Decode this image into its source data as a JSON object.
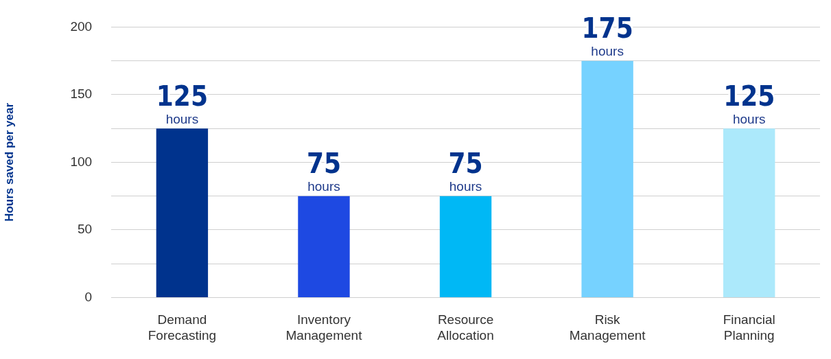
{
  "chart_data": {
    "type": "bar",
    "ylabel": "Hours saved per year",
    "categories": [
      "Demand Forecasting",
      "Inventory Management",
      "Resource Allocation",
      "Risk Management",
      "Financial Planning"
    ],
    "values": [
      125,
      75,
      75,
      175,
      125
    ],
    "colors": [
      "#00338d",
      "#1e49e2",
      "#00b8f5",
      "#76d2ff",
      "#ace9fb"
    ],
    "value_labels": [
      "125\nhours",
      "75\nhours",
      "75\nhours",
      "175\nhours",
      "125\nhours"
    ],
    "ylim": [
      0,
      200
    ],
    "yticks": [
      0,
      {
        "value": 25,
        "label": null
      },
      50,
      {
        "value": 75,
        "label": null
      },
      100,
      {
        "value": 125,
        "label": null
      },
      150,
      {
        "value": 175,
        "label": null
      },
      200
    ],
    "grid": "y",
    "legend": false
  }
}
